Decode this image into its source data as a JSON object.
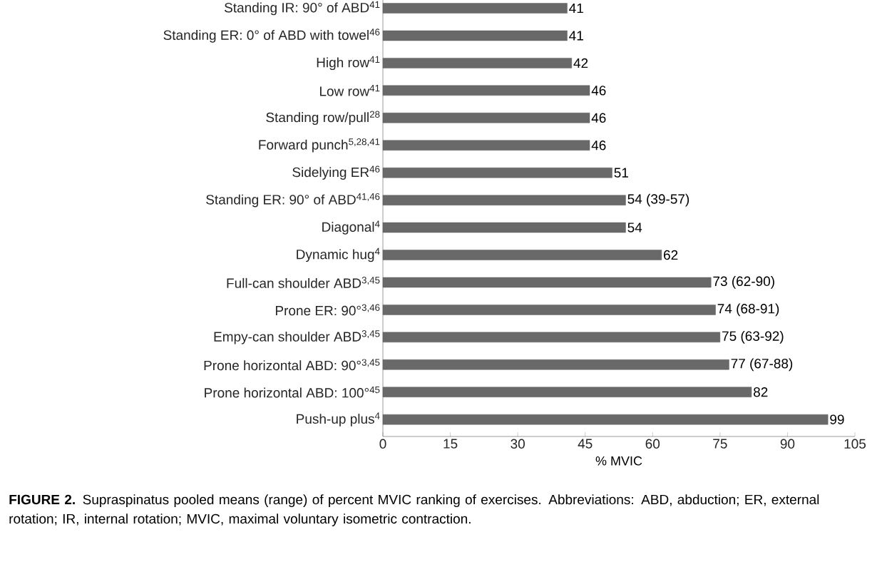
{
  "chart_data": {
    "type": "bar",
    "orientation": "horizontal",
    "categories": [
      "Standing IR: 90° of ABD$^{41}$",
      "Standing ER: 0° of ABD with towel$^{46}$",
      "High row$^{41}$",
      "Low row$^{41}$",
      "Standing row/pull$^{28}$",
      "Forward punch$^{5,28,41}$",
      "Sidelying ER$^{46}$",
      "Standing ER: 90° of ABD$^{41,46}$",
      "Diagonal$^{4}$",
      "Dynamic hug$^{4}$",
      "Full-can shoulder ABD$^{3,45}$",
      "Prone ER: 90°$^{3,46}$",
      "Empy-can shoulder ABD$^{3,45}$",
      "Prone horizontal ABD: 90°$^{3,45}$",
      "Prone horizontal ABD: 100°$^{45}$",
      "Push-up plus$^{4}$"
    ],
    "values": [
      41,
      41,
      42,
      46,
      46,
      46,
      51,
      54,
      54,
      62,
      73,
      74,
      75,
      77,
      82,
      99
    ],
    "value_labels": [
      "41",
      "41",
      "42",
      "46",
      "46",
      "46",
      "51",
      "54 (39-57)",
      "54",
      "62",
      "73 (62-90)",
      "74 (68-91)",
      "75 (63-92)",
      "77 (67-88)",
      "82",
      "99"
    ],
    "color": "#696969",
    "xlim": [
      0,
      105
    ],
    "xticks": [
      0,
      15,
      30,
      45,
      60,
      75,
      90,
      105
    ],
    "xlabel": "% MVIC",
    "annotations": [
      "**FIGURE 2.** Supraspinatus pooled means (range) of percent MVIC ranking of exercises. Abbreviations: ABD, abduction; ER, external rotation; IR, internal rotation; MVIC, maximal voluntary isometric contraction."
    ]
  }
}
